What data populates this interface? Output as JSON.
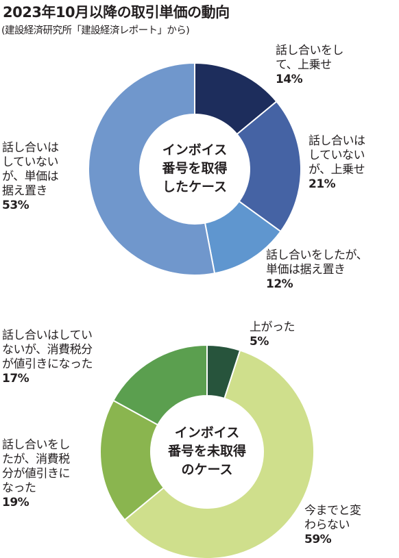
{
  "title": "2023年10月以降の取引単価の動向",
  "subtitle": "(建設経済研究所「建設経済レポート」から)",
  "chart_data": [
    {
      "type": "pie",
      "center_label": [
        "インボイス",
        "番号を取得",
        "したケース"
      ],
      "slices": [
        {
          "label": [
            "話し合いをし",
            "て、上乗せ"
          ],
          "value": 14,
          "value_label": "14%",
          "color": "#1d2d5c"
        },
        {
          "label": [
            "話し合いは",
            "していない",
            "が、上乗せ"
          ],
          "value": 21,
          "value_label": "21%",
          "color": "#4563a4"
        },
        {
          "label": [
            "話し合いをしたが、",
            "単価は据え置き"
          ],
          "value": 12,
          "value_label": "12%",
          "color": "#5f96cf"
        },
        {
          "label": [
            "話し合いは",
            "していない",
            "が、単価は",
            "据え置き"
          ],
          "value": 53,
          "value_label": "53%",
          "color": "#7097cc"
        }
      ]
    },
    {
      "type": "pie",
      "center_label": [
        "インボイス",
        "番号を未取得",
        "のケース"
      ],
      "slices": [
        {
          "label": [
            "上がった"
          ],
          "value": 5,
          "value_label": "5%",
          "color": "#27543c"
        },
        {
          "label": [
            "今までと変",
            "わらない"
          ],
          "value": 59,
          "value_label": "59%",
          "color": "#cfdf8c"
        },
        {
          "label": [
            "話し合いをし",
            "たが、消費税",
            "分が値引きに",
            "なった"
          ],
          "value": 19,
          "value_label": "19%",
          "color": "#8ab54f"
        },
        {
          "label": [
            "話し合いはしてい",
            "ないが、消費税分",
            "が値引きになった"
          ],
          "value": 17,
          "value_label": "17%",
          "color": "#5b9f4f"
        }
      ]
    }
  ]
}
